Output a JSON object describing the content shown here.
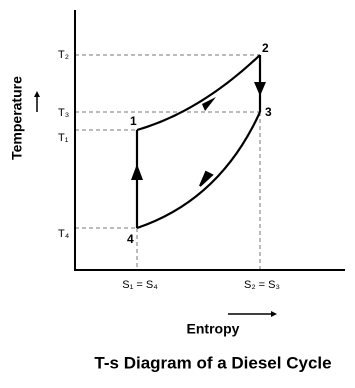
{
  "diagram": {
    "title": "T-s Diagram of a Diesel Cycle",
    "y_axis_label": "Temperature",
    "x_axis_label": "Entropy",
    "y_ticks": [
      "T₂",
      "T₃",
      "T₁",
      "T₄"
    ],
    "x_ticks": [
      "S₁ = S₄",
      "S₂ = S₃"
    ],
    "points": [
      "1",
      "2",
      "3",
      "4"
    ]
  }
}
